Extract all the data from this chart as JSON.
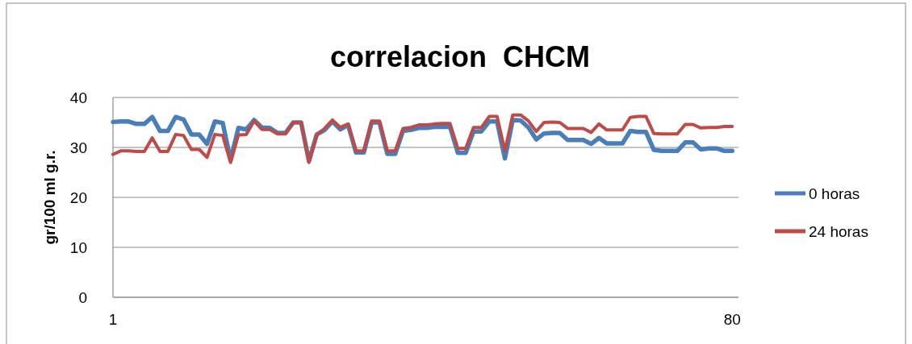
{
  "chart_data": {
    "type": "line",
    "title": "correlacion  CHCM",
    "ylabel": "gr/100 ml g.r.",
    "x": [
      1,
      2,
      3,
      4,
      5,
      6,
      7,
      8,
      9,
      10,
      11,
      12,
      13,
      14,
      15,
      16,
      17,
      18,
      19,
      20,
      21,
      22,
      23,
      24,
      25,
      26,
      27,
      28,
      29,
      30,
      31,
      32,
      33,
      34,
      35,
      36,
      37,
      38,
      39,
      40,
      41,
      42,
      43,
      44,
      45,
      46,
      47,
      48,
      49,
      50,
      51,
      52,
      53,
      54,
      55,
      56,
      57,
      58,
      59,
      60,
      61,
      62,
      63,
      64,
      65,
      66,
      67,
      68,
      69,
      70,
      71,
      72,
      73,
      74,
      75,
      76,
      77,
      78,
      79,
      80
    ],
    "xlim": [
      1,
      80.8
    ],
    "xticks": [
      1,
      80
    ],
    "ylim": [
      0,
      40
    ],
    "yticks": [
      0,
      10,
      20,
      30,
      40
    ],
    "grid": "y",
    "legend": "right",
    "line_style": "solid",
    "marker": "none",
    "series": [
      {
        "name": "0 horas",
        "color": "#4a7ebb",
        "values": [
          35.1,
          35.2,
          35.2,
          34.7,
          34.7,
          36.1,
          33.3,
          33.3,
          36.1,
          35.6,
          32.6,
          32.6,
          30.7,
          35.2,
          34.9,
          27.5,
          33.9,
          33.6,
          35.5,
          34.0,
          33.9,
          32.9,
          32.9,
          35.0,
          35.0,
          27.3,
          32.6,
          33.5,
          35.2,
          33.6,
          34.5,
          29.0,
          29.0,
          35.0,
          35.0,
          28.7,
          28.7,
          33.3,
          33.5,
          33.9,
          33.9,
          34.1,
          34.1,
          34.1,
          28.9,
          28.9,
          33.2,
          33.2,
          35.2,
          35.2,
          27.8,
          35.5,
          35.4,
          34.0,
          31.6,
          32.8,
          32.9,
          32.9,
          31.5,
          31.5,
          31.5,
          30.7,
          31.9,
          30.8,
          30.8,
          30.8,
          33.3,
          33.1,
          33.1,
          29.5,
          29.3,
          29.3,
          29.3,
          31.0,
          31.0,
          29.6,
          29.8,
          29.8,
          29.3,
          29.3
        ]
      },
      {
        "name": "24 horas",
        "color": "#be4b48",
        "values": [
          28.6,
          29.3,
          29.3,
          29.2,
          29.2,
          31.9,
          29.2,
          29.2,
          32.6,
          32.4,
          29.6,
          29.6,
          28.0,
          32.6,
          32.4,
          27.0,
          32.5,
          32.6,
          35.3,
          33.6,
          33.6,
          32.7,
          32.7,
          35.0,
          35.0,
          27.0,
          32.5,
          33.8,
          35.5,
          34.0,
          34.7,
          29.3,
          29.3,
          35.3,
          35.3,
          29.3,
          29.3,
          33.8,
          34.0,
          34.5,
          34.5,
          34.7,
          34.8,
          34.8,
          29.8,
          29.8,
          34.0,
          34.0,
          36.2,
          36.2,
          29.3,
          36.5,
          36.5,
          35.3,
          33.2,
          35.0,
          35.1,
          35.0,
          33.8,
          33.8,
          33.8,
          33.0,
          34.7,
          33.5,
          33.5,
          33.5,
          36.0,
          36.2,
          36.2,
          32.8,
          32.7,
          32.7,
          32.7,
          34.6,
          34.6,
          33.9,
          34.0,
          34.0,
          34.2,
          34.2
        ]
      }
    ]
  }
}
